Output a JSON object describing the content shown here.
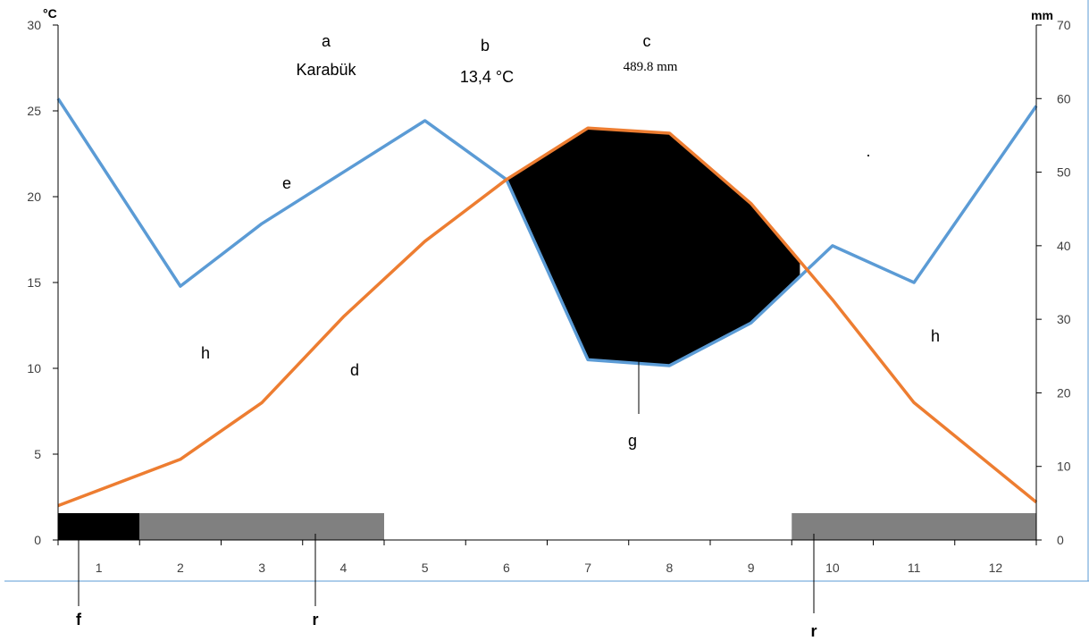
{
  "chart_data": {
    "type": "line",
    "left_axis": {
      "unit": "°C",
      "min": 0,
      "max": 30,
      "ticks": [
        0,
        5,
        10,
        15,
        20,
        25,
        30
      ]
    },
    "right_axis": {
      "unit": "mm",
      "min": 0,
      "max": 70,
      "ticks": [
        0,
        10,
        20,
        30,
        40,
        50,
        60,
        70
      ]
    },
    "categories": [
      "1",
      "2",
      "3",
      "4",
      "5",
      "6",
      "7",
      "8",
      "9",
      "10",
      "11",
      "12"
    ],
    "series": [
      {
        "id": "precip",
        "axis": "right",
        "color": "#5b9bd5",
        "x": [
          0.5,
          2,
          3,
          4,
          5,
          6,
          7,
          8,
          9,
          10,
          11,
          12.5
        ],
        "values": [
          60,
          34.5,
          43,
          50,
          57,
          49,
          24.5,
          23.7,
          29.5,
          40,
          35,
          59
        ]
      },
      {
        "id": "temp",
        "axis": "left",
        "color": "#ed7d31",
        "x": [
          0.5,
          2,
          3,
          4,
          5,
          6,
          7,
          8,
          9,
          10,
          11,
          12.5
        ],
        "values": [
          2.0,
          4.7,
          8.0,
          13.0,
          17.4,
          21.0,
          24.0,
          23.7,
          19.6,
          14.0,
          8.0,
          2.2
        ]
      }
    ],
    "arid_period": {
      "from_month": 6,
      "to_month": 9.6,
      "color": "#000000"
    },
    "bars": [
      {
        "from": 0.5,
        "to": 1.5,
        "color": "#000000"
      },
      {
        "from": 1.5,
        "to": 4.5,
        "color": "#808080"
      },
      {
        "from": 9.5,
        "to": 12.5,
        "color": "#808080"
      }
    ],
    "annotations": {
      "a": "a",
      "station": "Karabük",
      "b": "b",
      "mean_temp": "13,4 °C",
      "c": "c",
      "total_precip": "489.8 mm",
      "e": "e",
      "d": "d",
      "g": "g",
      "h_left": "h",
      "h_right": "h",
      "f": "f",
      "r_left": "r",
      "r_right": "r",
      "dot": "."
    }
  }
}
